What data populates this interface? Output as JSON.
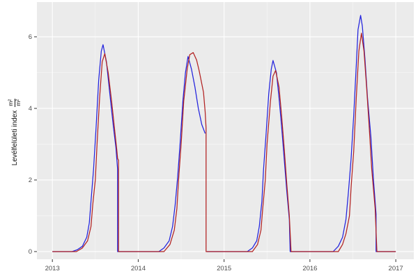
{
  "chart_data": {
    "type": "line",
    "title": "",
    "xlabel": "",
    "ylabel": "Levélfelületi index m²/m²",
    "ylabel_text": "Levélfelületi index",
    "ylabel_frac_num": "m²",
    "ylabel_frac_den": "m²",
    "x_ticks": [
      "2013",
      "2014",
      "2015",
      "2016",
      "2017"
    ],
    "x_tick_values": [
      2013,
      2014,
      2015,
      2016,
      2017
    ],
    "x_minor_values": [
      2013.5,
      2014.5,
      2015.5,
      2016.5
    ],
    "y_ticks": [
      "0",
      "2",
      "4",
      "6"
    ],
    "y_tick_values": [
      0,
      2,
      4,
      6
    ],
    "y_minor_values": [
      1,
      3,
      5
    ],
    "xlim": [
      2012.82,
      2017.21
    ],
    "ylim": [
      -0.214,
      6.97
    ],
    "grid": true,
    "legend_position": "none",
    "colors": {
      "panel_bg": "#EBEBEB",
      "grid_major": "#FFFFFF",
      "grid_minor": "#F6F6F6",
      "tick_mark": "#333333",
      "tick_label": "#4D4D4D",
      "series_blue": "#2222DD",
      "series_red": "#B22222"
    },
    "series": [
      {
        "name": "series-blue",
        "color": "#2222DD",
        "segments": [
          [
            [
              2013.0,
              0
            ],
            [
              2013.23,
              0
            ],
            [
              2013.29,
              0.05
            ],
            [
              2013.35,
              0.15
            ],
            [
              2013.4,
              0.4
            ],
            [
              2013.43,
              0.8
            ],
            [
              2013.45,
              1.4
            ],
            [
              2013.48,
              2.3
            ],
            [
              2013.51,
              3.5
            ],
            [
              2013.54,
              4.8
            ],
            [
              2013.57,
              5.6
            ],
            [
              2013.59,
              5.78
            ],
            [
              2013.63,
              5.3
            ],
            [
              2013.67,
              4.4
            ],
            [
              2013.71,
              3.5
            ],
            [
              2013.74,
              2.9
            ],
            [
              2013.76,
              2.3
            ],
            [
              2013.76,
              0
            ],
            [
              2014.24,
              0
            ],
            [
              2014.3,
              0.1
            ],
            [
              2014.36,
              0.3
            ],
            [
              2014.4,
              0.7
            ],
            [
              2014.43,
              1.3
            ],
            [
              2014.46,
              2.1
            ],
            [
              2014.49,
              3.1
            ],
            [
              2014.52,
              4.2
            ],
            [
              2014.55,
              5.0
            ],
            [
              2014.58,
              5.45
            ],
            [
              2014.62,
              5.1
            ],
            [
              2014.66,
              4.6
            ],
            [
              2014.7,
              4.0
            ],
            [
              2014.74,
              3.55
            ],
            [
              2014.78,
              3.3
            ]
          ],
          [
            [
              2014.8,
              0
            ],
            [
              2015.27,
              0
            ],
            [
              2015.33,
              0.1
            ],
            [
              2015.38,
              0.3
            ],
            [
              2015.41,
              0.7
            ],
            [
              2015.44,
              1.4
            ],
            [
              2015.46,
              2.3
            ],
            [
              2015.49,
              3.3
            ],
            [
              2015.52,
              4.4
            ],
            [
              2015.55,
              5.1
            ],
            [
              2015.57,
              5.34
            ],
            [
              2015.61,
              5.0
            ],
            [
              2015.64,
              4.3
            ],
            [
              2015.67,
              3.5
            ],
            [
              2015.7,
              2.6
            ],
            [
              2015.73,
              1.7
            ],
            [
              2015.76,
              0.9
            ],
            [
              2015.77,
              0
            ],
            [
              2016.27,
              0
            ],
            [
              2016.33,
              0.15
            ],
            [
              2016.38,
              0.4
            ],
            [
              2016.42,
              0.9
            ],
            [
              2016.45,
              1.7
            ],
            [
              2016.48,
              2.6
            ],
            [
              2016.51,
              3.8
            ],
            [
              2016.54,
              5.2
            ],
            [
              2016.56,
              6.2
            ],
            [
              2016.59,
              6.6
            ],
            [
              2016.61,
              6.3
            ],
            [
              2016.64,
              5.4
            ],
            [
              2016.67,
              4.3
            ],
            [
              2016.71,
              3.2
            ],
            [
              2016.74,
              2.0
            ],
            [
              2016.77,
              1.05
            ],
            [
              2016.77,
              0
            ],
            [
              2017.0,
              0
            ]
          ]
        ]
      },
      {
        "name": "series-red",
        "color": "#B22222",
        "segments": [
          [
            [
              2013.0,
              0
            ],
            [
              2013.28,
              0
            ],
            [
              2013.35,
              0.1
            ],
            [
              2013.41,
              0.3
            ],
            [
              2013.45,
              0.7
            ],
            [
              2013.47,
              1.3
            ],
            [
              2013.5,
              2.0
            ],
            [
              2013.52,
              3.0
            ],
            [
              2013.55,
              4.3
            ],
            [
              2013.58,
              5.3
            ],
            [
              2013.61,
              5.53
            ],
            [
              2013.65,
              5.0
            ],
            [
              2013.69,
              4.2
            ],
            [
              2013.73,
              3.3
            ],
            [
              2013.75,
              2.85
            ],
            [
              2013.76,
              2.6
            ],
            [
              2013.77,
              2.55
            ],
            [
              2013.77,
              0
            ],
            [
              2014.3,
              0
            ],
            [
              2014.37,
              0.2
            ],
            [
              2014.42,
              0.6
            ],
            [
              2014.45,
              1.2
            ],
            [
              2014.47,
              2.0
            ],
            [
              2014.5,
              3.0
            ],
            [
              2014.53,
              4.2
            ],
            [
              2014.57,
              5.1
            ],
            [
              2014.6,
              5.5
            ],
            [
              2014.64,
              5.56
            ],
            [
              2014.68,
              5.35
            ],
            [
              2014.71,
              5.05
            ],
            [
              2014.76,
              4.45
            ],
            [
              2014.78,
              3.9
            ],
            [
              2014.79,
              3.45
            ],
            [
              2014.79,
              0
            ],
            [
              2015.33,
              0
            ],
            [
              2015.39,
              0.2
            ],
            [
              2015.43,
              0.6
            ],
            [
              2015.45,
              1.2
            ],
            [
              2015.48,
              2.0
            ],
            [
              2015.5,
              3.0
            ],
            [
              2015.54,
              4.2
            ],
            [
              2015.57,
              4.9
            ],
            [
              2015.6,
              5.06
            ],
            [
              2015.64,
              4.6
            ],
            [
              2015.67,
              3.8
            ],
            [
              2015.7,
              2.9
            ],
            [
              2015.73,
              1.9
            ],
            [
              2015.76,
              1.0
            ],
            [
              2015.78,
              0
            ],
            [
              2016.33,
              0
            ],
            [
              2016.38,
              0.2
            ],
            [
              2016.42,
              0.5
            ],
            [
              2016.46,
              1.0
            ],
            [
              2016.48,
              1.8
            ],
            [
              2016.51,
              2.8
            ],
            [
              2016.54,
              4.3
            ],
            [
              2016.57,
              5.6
            ],
            [
              2016.6,
              6.1
            ],
            [
              2016.63,
              5.6
            ],
            [
              2016.66,
              4.6
            ],
            [
              2016.69,
              3.5
            ],
            [
              2016.72,
              2.3
            ],
            [
              2016.76,
              1.2
            ],
            [
              2016.78,
              0
            ],
            [
              2017.0,
              0
            ]
          ]
        ]
      }
    ]
  }
}
